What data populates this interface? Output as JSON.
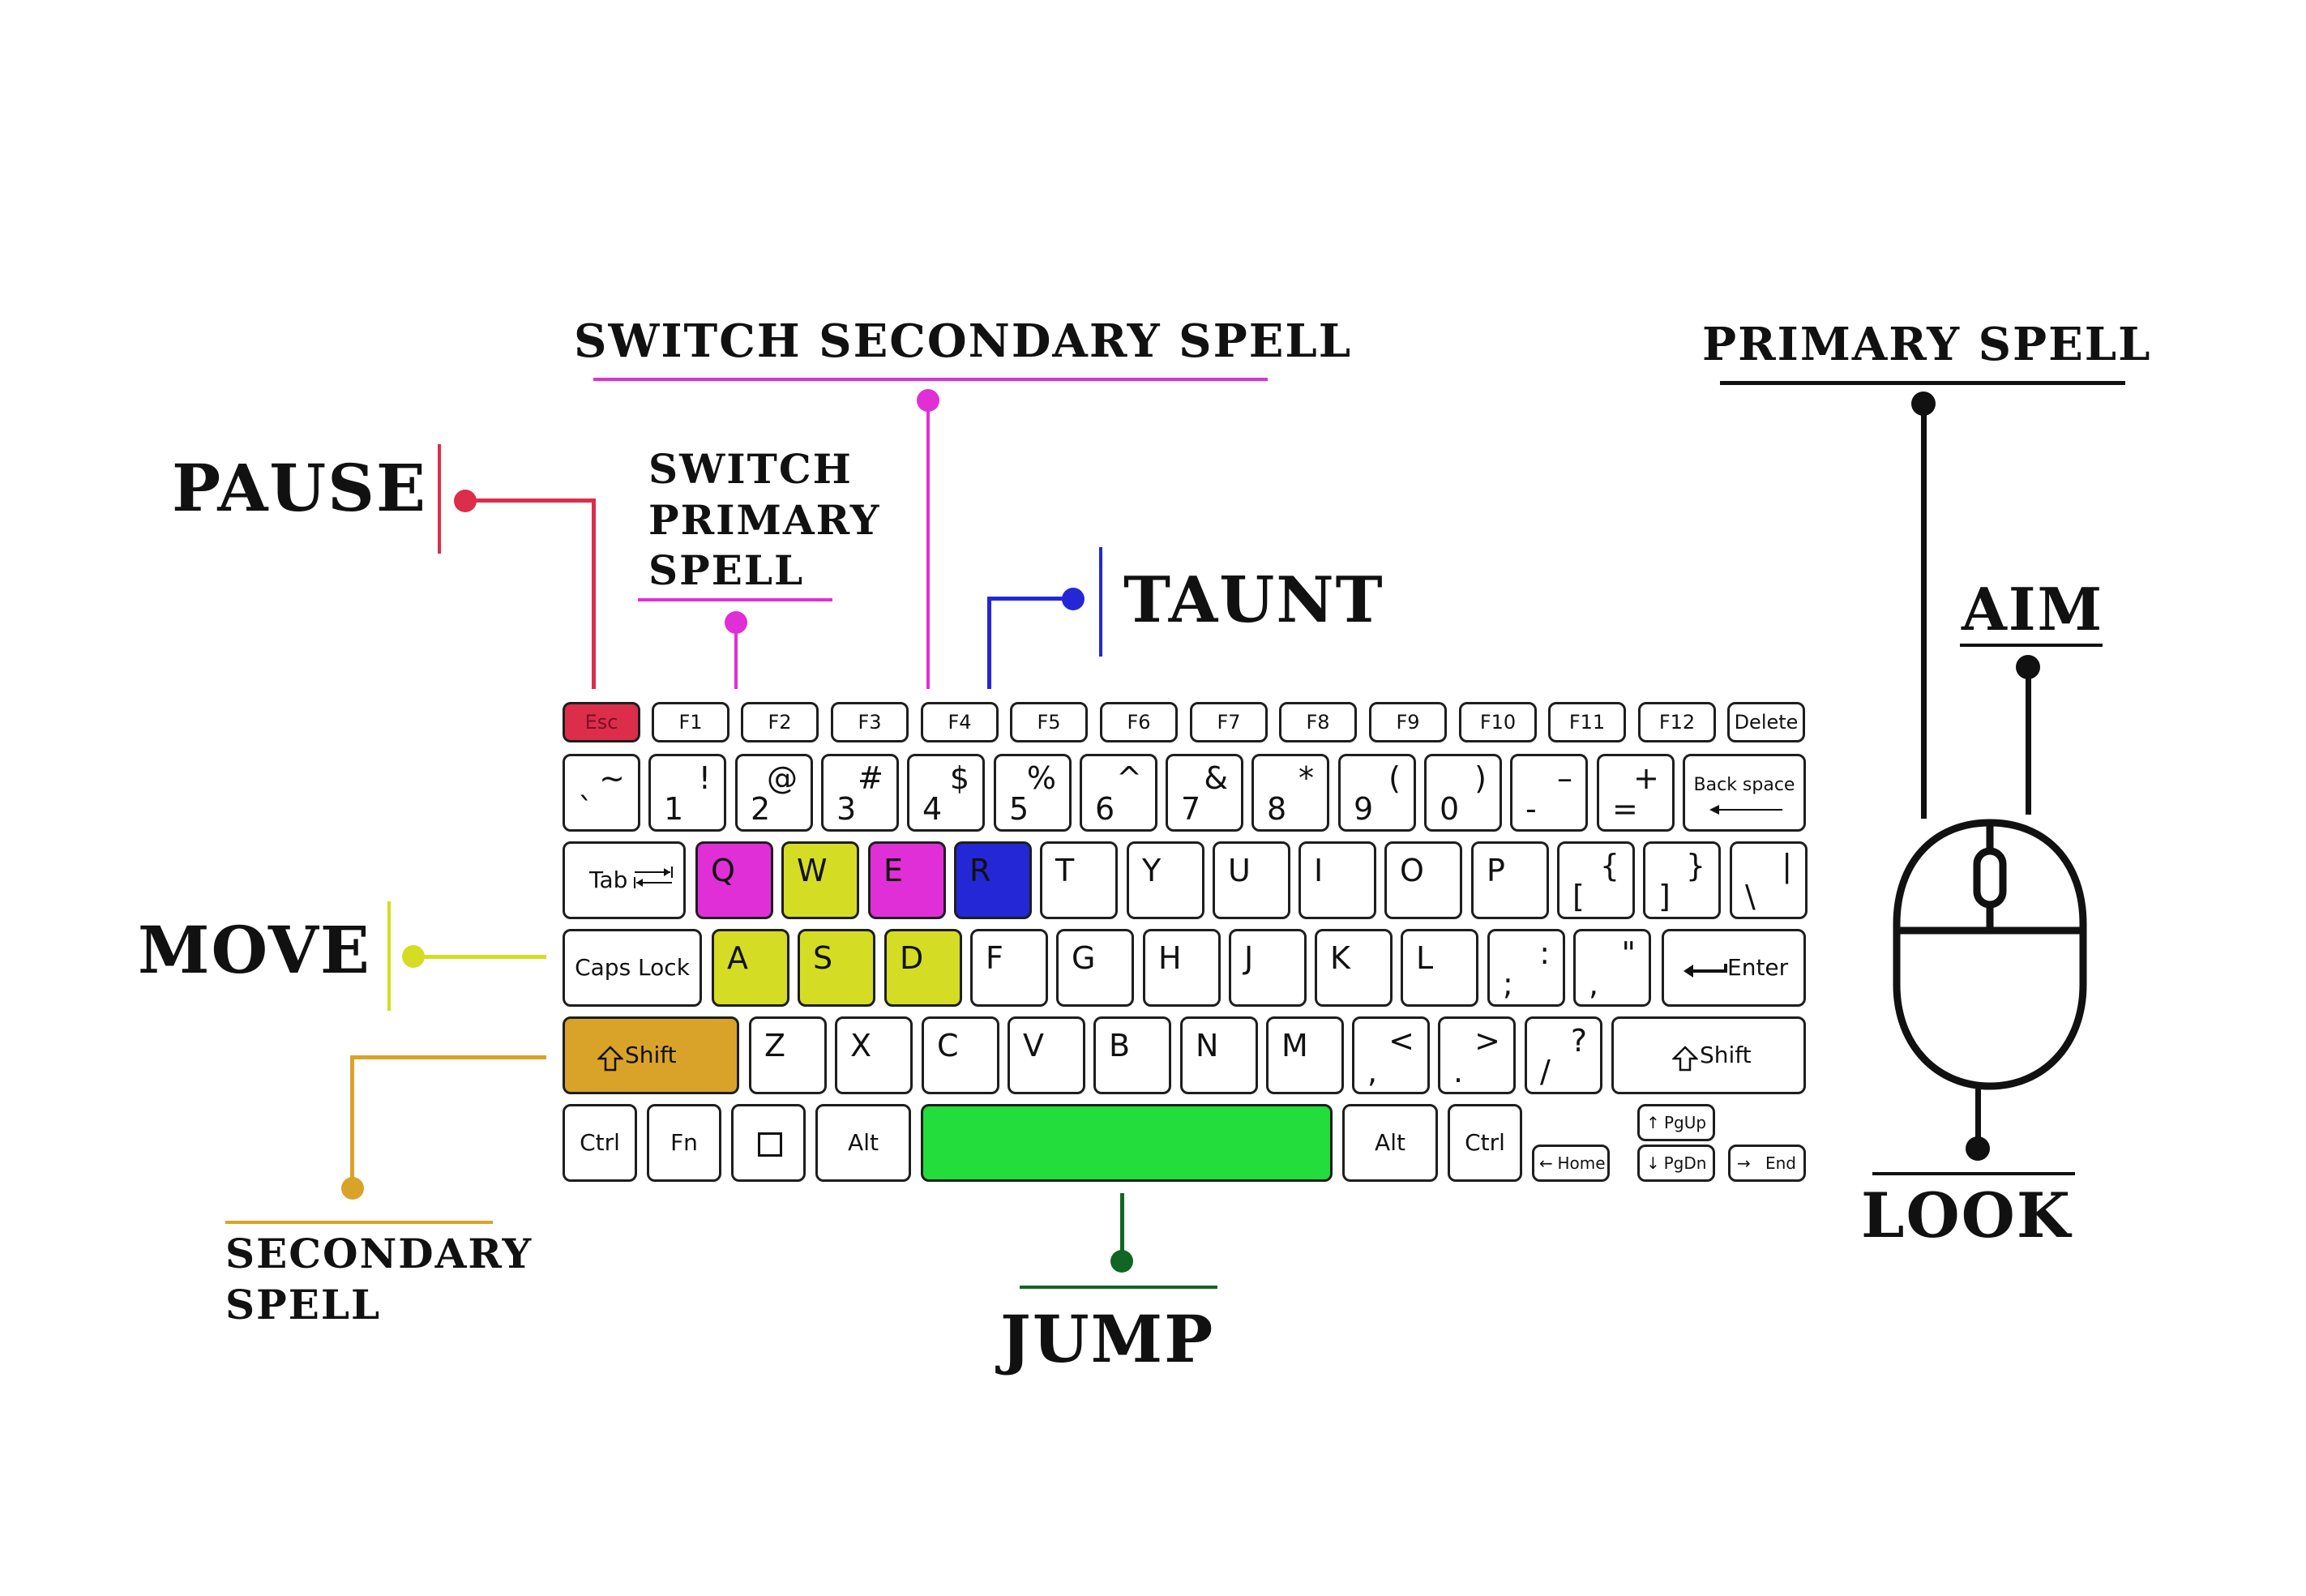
{
  "colors": {
    "pause": "#dc2d4b",
    "switch_spell": "#e02fd7",
    "taunt": "#2327d6",
    "move": "#d4dd24",
    "secondary_spell": "#d9a32a",
    "jump_key": "#22dd3b",
    "jump_line": "#116623",
    "black": "#111111"
  },
  "bindings": {
    "pause": "PAUSE",
    "switch_primary_spell": "SWITCH PRIMARY SPELL",
    "switch_secondary_spell": "SWITCH SECONDARY SPELL",
    "taunt": "TAUNT",
    "move": "MOVE",
    "secondary_spell": "SECONDARY SPELL",
    "jump": "JUMP",
    "primary_spell": "PRIMARY SPELL",
    "aim": "AIM",
    "look": "LOOK"
  },
  "keyboard": {
    "function_row": [
      "Esc",
      "F1",
      "F2",
      "F3",
      "F4",
      "F5",
      "F6",
      "F7",
      "F8",
      "F9",
      "F10",
      "F11",
      "F12",
      "Delete"
    ],
    "number_row": [
      {
        "top": "~",
        "bottom": "`"
      },
      {
        "top": "!",
        "bottom": "1"
      },
      {
        "top": "@",
        "bottom": "2"
      },
      {
        "top": "#",
        "bottom": "3"
      },
      {
        "top": "$",
        "bottom": "4"
      },
      {
        "top": "%",
        "bottom": "5"
      },
      {
        "top": "^",
        "bottom": "6"
      },
      {
        "top": "&",
        "bottom": "7"
      },
      {
        "top": "*",
        "bottom": "8"
      },
      {
        "top": "(",
        "bottom": "9"
      },
      {
        "top": ")",
        "bottom": "0"
      },
      {
        "top": "–",
        "bottom": "-"
      },
      {
        "top": "+",
        "bottom": "="
      }
    ],
    "backspace": "Back space",
    "tab": "Tab",
    "qwerty_row": [
      "Q",
      "W",
      "E",
      "R",
      "T",
      "Y",
      "U",
      "I",
      "O",
      "P"
    ],
    "bracket_keys": [
      {
        "top": "{",
        "bottom": "["
      },
      {
        "top": "}",
        "bottom": "]"
      },
      {
        "top": "|",
        "bottom": "\\"
      }
    ],
    "caps_lock": "Caps Lock",
    "asdf_row": [
      "A",
      "S",
      "D",
      "F",
      "G",
      "H",
      "J",
      "K",
      "L"
    ],
    "punct_keys_home": [
      {
        "top": ":",
        "bottom": ";"
      },
      {
        "top": "\"",
        "bottom": ","
      }
    ],
    "enter": "Enter",
    "shift_left": "Shift",
    "zxcv_row": [
      "Z",
      "X",
      "C",
      "V",
      "B",
      "N",
      "M"
    ],
    "punct_keys_bottom": [
      {
        "top": "<",
        "bottom": ","
      },
      {
        "top": ">",
        "bottom": "."
      },
      {
        "top": "?",
        "bottom": "/"
      }
    ],
    "shift_right": "Shift",
    "ctrl_left": "Ctrl",
    "fn": "Fn",
    "alt_left": "Alt",
    "alt_right": "Alt",
    "ctrl_right": "Ctrl",
    "home": "Home",
    "pgup": "PgUp",
    "pgdn": "PgDn",
    "end": "End"
  }
}
